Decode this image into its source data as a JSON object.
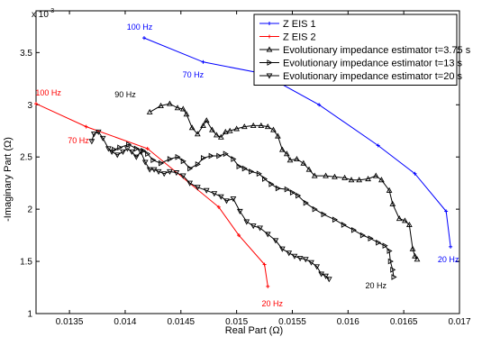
{
  "chart_data": {
    "type": "line",
    "xlabel": "Real Part (Ω)",
    "ylabel": "-Imaginary Part (Ω)",
    "y_multiplier": "x 10",
    "y_multiplier_exp": "-3",
    "xlim": [
      0.0132,
      0.017
    ],
    "ylim": [
      0.001,
      0.0039
    ],
    "xticks": [
      0.0135,
      0.014,
      0.0145,
      0.015,
      0.0155,
      0.016,
      0.0165,
      0.017
    ],
    "xtick_labels": [
      "0.0135",
      "0.014",
      "0.0145",
      "0.015",
      "0.0155",
      "0.016",
      "0.0165",
      "0.017"
    ],
    "yticks": [
      0.001,
      0.0015,
      0.002,
      0.0025,
      0.003,
      0.0035
    ],
    "ytick_labels": [
      "1",
      "1.5",
      "2",
      "2.5",
      "3",
      "3.5"
    ],
    "grid": false,
    "legend_position": "top-right",
    "series": [
      {
        "name": "Z EIS 1",
        "color": "#0000ff",
        "marker": "plus",
        "x": [
          0.01417,
          0.0147,
          0.01523,
          0.01574,
          0.01627,
          0.0166,
          0.01688,
          0.01692
        ],
        "y": [
          0.00364,
          0.00341,
          0.0033,
          0.003,
          0.00261,
          0.00234,
          0.00198,
          0.00164
        ]
      },
      {
        "name": "Z EIS 2",
        "color": "#ff0000",
        "marker": "plus",
        "x": [
          0.0132,
          0.01365,
          0.0142,
          0.01484,
          0.01502,
          0.01525,
          0.01528
        ],
        "y": [
          0.00301,
          0.00279,
          0.00258,
          0.00202,
          0.00175,
          0.00147,
          0.00126
        ]
      },
      {
        "name": "Evolutionary impedance estimator t=3.75 s",
        "color": "#000000",
        "marker": "triangle-up",
        "x": [
          0.01422,
          0.01432,
          0.0144,
          0.01447,
          0.01452,
          0.01455,
          0.0146,
          0.01465,
          0.0147,
          0.01473,
          0.01478,
          0.01482,
          0.01486,
          0.0149,
          0.01494,
          0.015,
          0.01507,
          0.01515,
          0.01522,
          0.01528,
          0.01533,
          0.01537,
          0.01541,
          0.01545,
          0.01548,
          0.01554,
          0.0156,
          0.01565,
          0.0157,
          0.0158,
          0.01588,
          0.01597,
          0.01603,
          0.0161,
          0.01618,
          0.01625,
          0.0163,
          0.01637,
          0.0164,
          0.01646,
          0.01651,
          0.01655,
          0.01658,
          0.0166,
          0.01662
        ],
        "y": [
          0.00293,
          0.00299,
          0.00301,
          0.00297,
          0.00296,
          0.00291,
          0.00278,
          0.00272,
          0.0028,
          0.00285,
          0.00276,
          0.00271,
          0.00269,
          0.00274,
          0.00275,
          0.00277,
          0.00279,
          0.0028,
          0.0028,
          0.00279,
          0.00276,
          0.0027,
          0.00257,
          0.00253,
          0.00247,
          0.00248,
          0.00244,
          0.00238,
          0.00232,
          0.00232,
          0.00231,
          0.0023,
          0.00228,
          0.00228,
          0.00229,
          0.00232,
          0.00228,
          0.00218,
          0.00205,
          0.00191,
          0.00189,
          0.00185,
          0.00162,
          0.00155,
          0.00152
        ]
      },
      {
        "name": "Evolutionary impedance estimator t=13 s",
        "color": "#000000",
        "marker": "triangle-right",
        "x": [
          0.0139,
          0.01395,
          0.01403,
          0.0141,
          0.01416,
          0.0142,
          0.01425,
          0.01432,
          0.0144,
          0.01447,
          0.01452,
          0.01458,
          0.01465,
          0.0147,
          0.01477,
          0.01484,
          0.0149,
          0.01497,
          0.01502,
          0.01507,
          0.01513,
          0.0152,
          0.01525,
          0.01531,
          0.01537,
          0.01545,
          0.0155,
          0.01555,
          0.01562,
          0.0157,
          0.01578,
          0.01588,
          0.01596,
          0.01605,
          0.01613,
          0.0162,
          0.01627,
          0.01633,
          0.01637,
          0.01638,
          0.0164,
          0.01641
        ],
        "y": [
          0.00257,
          0.00259,
          0.00262,
          0.00258,
          0.00256,
          0.00253,
          0.00247,
          0.00244,
          0.00248,
          0.0025,
          0.00246,
          0.00239,
          0.00243,
          0.00249,
          0.00251,
          0.00251,
          0.00253,
          0.00248,
          0.00241,
          0.00239,
          0.00236,
          0.00234,
          0.00229,
          0.00224,
          0.0022,
          0.00219,
          0.00216,
          0.00213,
          0.00206,
          0.002,
          0.00195,
          0.0019,
          0.00185,
          0.0018,
          0.00175,
          0.00172,
          0.00168,
          0.00165,
          0.0016,
          0.0015,
          0.00142,
          0.00135
        ]
      },
      {
        "name": "Evolutionary impedance estimator t=20 s",
        "color": "#000000",
        "marker": "triangle-down",
        "x": [
          0.0137,
          0.01372,
          0.01376,
          0.0138,
          0.01385,
          0.01388,
          0.01393,
          0.01398,
          0.01402,
          0.01406,
          0.0141,
          0.01414,
          0.01418,
          0.01422,
          0.01426,
          0.0143,
          0.01435,
          0.0144,
          0.01446,
          0.01452,
          0.01458,
          0.01465,
          0.01473,
          0.0148,
          0.01486,
          0.01491,
          0.01497,
          0.01503,
          0.01509,
          0.01515,
          0.01521,
          0.01528,
          0.01535,
          0.01541,
          0.01547,
          0.01552,
          0.01557,
          0.01562,
          0.01567,
          0.01572,
          0.01576,
          0.0158,
          0.01583
        ],
        "y": [
          0.00265,
          0.00272,
          0.00274,
          0.00268,
          0.00258,
          0.00255,
          0.00252,
          0.00255,
          0.00258,
          0.00255,
          0.0025,
          0.00255,
          0.00245,
          0.00238,
          0.00238,
          0.00236,
          0.00234,
          0.00236,
          0.00235,
          0.00232,
          0.00225,
          0.00221,
          0.00218,
          0.00215,
          0.00212,
          0.00208,
          0.0021,
          0.00198,
          0.00188,
          0.00184,
          0.00182,
          0.00176,
          0.0017,
          0.00162,
          0.00158,
          0.00155,
          0.00153,
          0.00152,
          0.00149,
          0.00145,
          0.00138,
          0.00136,
          0.00133
        ]
      }
    ],
    "annotations": [
      {
        "text": "100 Hz",
        "x": 0.01413,
        "y": 0.00372,
        "color": "#0000ff"
      },
      {
        "text": "70 Hz",
        "x": 0.01461,
        "y": 0.00326,
        "color": "#0000ff"
      },
      {
        "text": "20 Hz",
        "x": 0.0169,
        "y": 0.00149,
        "color": "#0000ff"
      },
      {
        "text": "100 Hz",
        "x": 0.01331,
        "y": 0.00309,
        "color": "#ff0000"
      },
      {
        "text": "70 Hz",
        "x": 0.01358,
        "y": 0.00263,
        "color": "#ff0000"
      },
      {
        "text": "20 Hz",
        "x": 0.01532,
        "y": 0.00107,
        "color": "#ff0000"
      },
      {
        "text": "90 Hz",
        "x": 0.014,
        "y": 0.00307,
        "color": "#000000"
      },
      {
        "text": "20 Hz",
        "x": 0.01625,
        "y": 0.00124,
        "color": "#000000"
      }
    ]
  }
}
